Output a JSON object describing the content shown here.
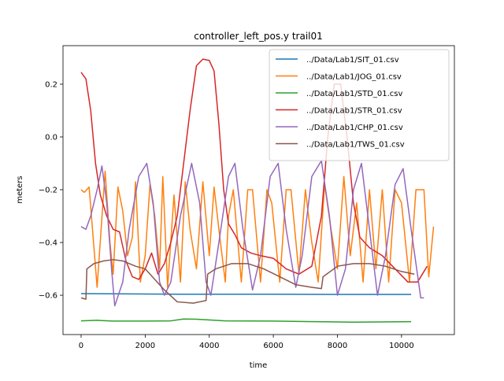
{
  "chart_data": {
    "type": "line",
    "title": "controller_left_pos.y trail01",
    "x_label": "time",
    "y_label": "meters",
    "xlim": [
      -565,
      11650
    ],
    "ylim": [
      -0.749,
      0.346
    ],
    "xticks": [
      0,
      2000,
      4000,
      6000,
      8000,
      10000
    ],
    "yticks": [
      {
        "value": -0.6,
        "label": "−0.6"
      },
      {
        "value": -0.4,
        "label": "−0.4"
      },
      {
        "value": -0.2,
        "label": "−0.2"
      },
      {
        "value": 0,
        "label": "0.0"
      },
      0.2
    ],
    "legend": "upper right",
    "series": [
      {
        "name": "../Data/Lab1/SIT_01.csv",
        "color": "#1f77b4",
        "x": [
          0,
          3000,
          6000,
          8000,
          10300
        ],
        "values": [
          -0.594,
          -0.596,
          -0.596,
          -0.597,
          -0.597
        ]
      },
      {
        "name": "../Data/Lab1/JOG_01.csv",
        "color": "#ff7f0e",
        "x": [
          0,
          100,
          250,
          500,
          750,
          900,
          1000,
          1150,
          1300,
          1450,
          1600,
          1700,
          1850,
          2000,
          2150,
          2300,
          2450,
          2550,
          2700,
          2900,
          3100,
          3250,
          3400,
          3600,
          3800,
          4000,
          4150,
          4300,
          4500,
          4600,
          4750,
          5000,
          5200,
          5350,
          5600,
          5800,
          5950,
          6200,
          6400,
          6550,
          6800,
          7000,
          7200,
          7400,
          7600,
          7800,
          8000,
          8200,
          8400,
          8600,
          8800,
          9000,
          9200,
          9400,
          9600,
          9800,
          10000,
          10250,
          10450,
          10700,
          10850,
          11000
        ],
        "values": [
          -0.2,
          -0.21,
          -0.19,
          -0.57,
          -0.13,
          -0.4,
          -0.52,
          -0.19,
          -0.28,
          -0.45,
          -0.38,
          -0.17,
          -0.55,
          -0.45,
          -0.18,
          -0.3,
          -0.5,
          -0.15,
          -0.57,
          -0.22,
          -0.55,
          -0.17,
          -0.35,
          -0.5,
          -0.17,
          -0.45,
          -0.19,
          -0.35,
          -0.55,
          -0.3,
          -0.2,
          -0.55,
          -0.2,
          -0.2,
          -0.55,
          -0.2,
          -0.25,
          -0.55,
          -0.2,
          -0.2,
          -0.52,
          -0.2,
          -0.4,
          -0.55,
          -0.18,
          -0.35,
          -0.5,
          -0.15,
          -0.45,
          -0.25,
          -0.55,
          -0.2,
          -0.5,
          -0.2,
          -0.55,
          -0.2,
          -0.25,
          -0.55,
          -0.2,
          -0.2,
          -0.53,
          -0.34
        ]
      },
      {
        "name": "../Data/Lab1/STD_01.csv",
        "color": "#2ca02c",
        "x": [
          0,
          500,
          1000,
          2000,
          2800,
          3200,
          3600,
          4500,
          6000,
          8500,
          10300
        ],
        "values": [
          -0.697,
          -0.695,
          -0.698,
          -0.698,
          -0.697,
          -0.69,
          -0.691,
          -0.697,
          -0.698,
          -0.702,
          -0.7
        ]
      },
      {
        "name": "../Data/Lab1/STR_01.csv",
        "color": "#d62728",
        "x": [
          0,
          150,
          300,
          450,
          600,
          800,
          1000,
          1200,
          1400,
          1600,
          1800,
          2000,
          2200,
          2400,
          2600,
          2800,
          3000,
          3200,
          3400,
          3600,
          3800,
          4000,
          4150,
          4300,
          4450,
          4600,
          4800,
          5000,
          5300,
          5600,
          6000,
          6400,
          6800,
          7200,
          7500,
          7700,
          7900,
          8100,
          8300,
          8500,
          8700,
          9000,
          9400,
          9800,
          10200,
          10500,
          10800
        ],
        "values": [
          0.245,
          0.22,
          0.1,
          -0.1,
          -0.22,
          -0.3,
          -0.35,
          -0.36,
          -0.47,
          -0.53,
          -0.54,
          -0.5,
          -0.44,
          -0.52,
          -0.48,
          -0.4,
          -0.3,
          -0.1,
          0.1,
          0.27,
          0.295,
          0.29,
          0.25,
          0.05,
          -0.2,
          -0.33,
          -0.37,
          -0.42,
          -0.44,
          -0.45,
          -0.46,
          -0.5,
          -0.52,
          -0.49,
          -0.3,
          0.0,
          0.2,
          0.2,
          0.0,
          -0.25,
          -0.38,
          -0.42,
          -0.45,
          -0.5,
          -0.55,
          -0.55,
          -0.49
        ]
      },
      {
        "name": "../Data/Lab1/CHP_01.csv",
        "color": "#9467bd",
        "x": [
          0,
          150,
          300,
          500,
          650,
          800,
          950,
          1050,
          1300,
          1500,
          1800,
          2050,
          2250,
          2450,
          2600,
          2800,
          3100,
          3450,
          3700,
          3900,
          4050,
          4300,
          4600,
          4800,
          5050,
          5350,
          5600,
          5900,
          6150,
          6400,
          6700,
          6900,
          7200,
          7500,
          7750,
          8000,
          8250,
          8500,
          8750,
          9000,
          9250,
          9500,
          9800,
          10050,
          10300,
          10600,
          10700
        ],
        "values": [
          -0.34,
          -0.35,
          -0.3,
          -0.2,
          -0.11,
          -0.25,
          -0.5,
          -0.64,
          -0.55,
          -0.35,
          -0.15,
          -0.1,
          -0.25,
          -0.55,
          -0.6,
          -0.55,
          -0.3,
          -0.1,
          -0.25,
          -0.55,
          -0.6,
          -0.4,
          -0.15,
          -0.1,
          -0.35,
          -0.58,
          -0.45,
          -0.15,
          -0.1,
          -0.35,
          -0.57,
          -0.45,
          -0.15,
          -0.09,
          -0.3,
          -0.6,
          -0.5,
          -0.2,
          -0.1,
          -0.35,
          -0.6,
          -0.45,
          -0.18,
          -0.12,
          -0.35,
          -0.61,
          -0.61
        ]
      },
      {
        "name": "../Data/Lab1/TWS_01.csv",
        "color": "#8c564b",
        "x": [
          0,
          150,
          180,
          400,
          700,
          1000,
          1300,
          1700,
          2000,
          2300,
          2600,
          3000,
          3500,
          3900,
          3950,
          4200,
          4700,
          5200,
          5700,
          6200,
          6700,
          7200,
          7500,
          7550,
          8000,
          8500,
          9000,
          9500,
          10000,
          10400
        ],
        "values": [
          -0.61,
          -0.615,
          -0.5,
          -0.48,
          -0.47,
          -0.465,
          -0.47,
          -0.49,
          -0.5,
          -0.54,
          -0.58,
          -0.625,
          -0.63,
          -0.62,
          -0.52,
          -0.5,
          -0.48,
          -0.48,
          -0.5,
          -0.53,
          -0.56,
          -0.57,
          -0.575,
          -0.53,
          -0.49,
          -0.48,
          -0.48,
          -0.49,
          -0.51,
          -0.52
        ]
      }
    ]
  }
}
